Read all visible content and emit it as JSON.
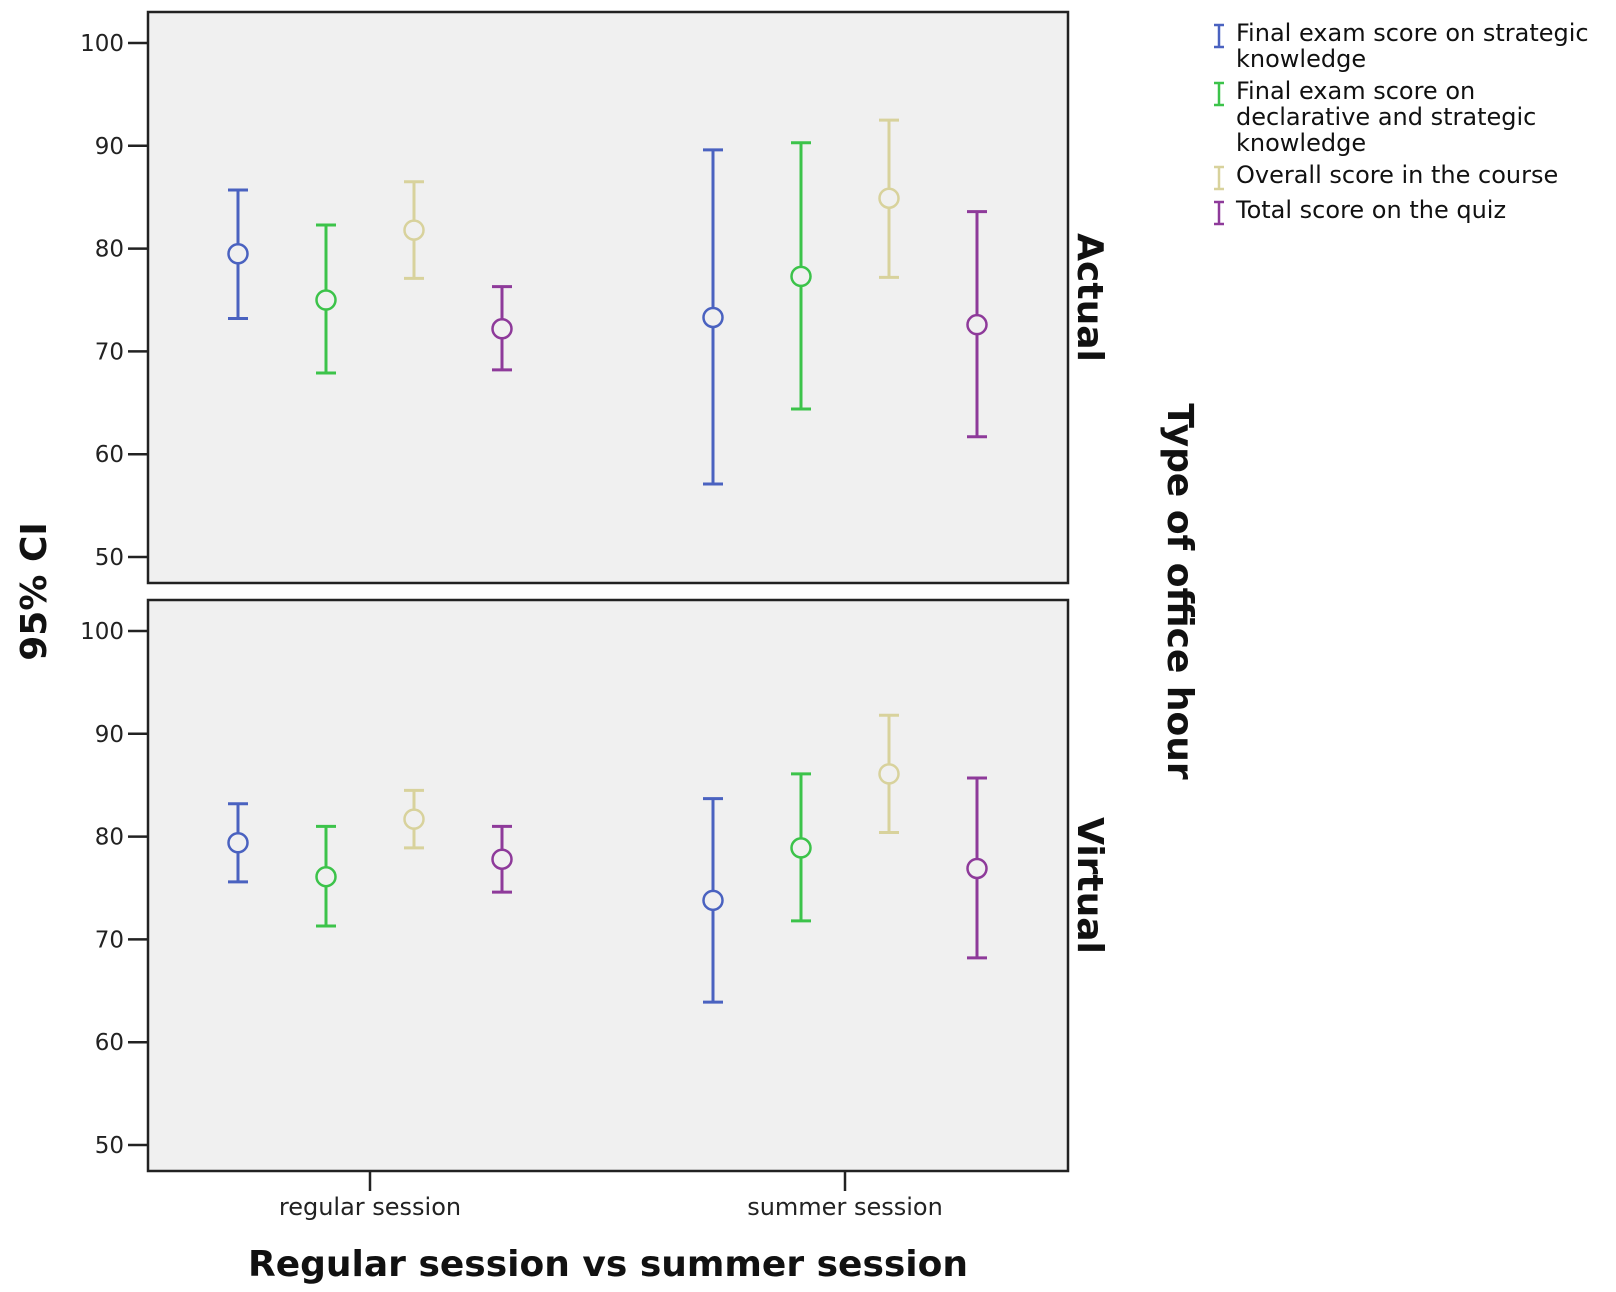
{
  "chart_data": {
    "type": "error-bar",
    "ylabel": "95% CI",
    "xlabel": "Regular session vs summer session",
    "facet_label": "Type of office hour",
    "categories": [
      "regular session",
      "summer session"
    ],
    "yticks": [
      50,
      60,
      70,
      80,
      90,
      100
    ],
    "ylim": [
      47,
      103
    ],
    "grid": false,
    "legend_position": "top-right",
    "series_meta": [
      {
        "name": "Final exam score on strategic knowledge",
        "color": "#4a62c0"
      },
      {
        "name": "Final exam score on declarative and strategic knowledge",
        "color": "#3cc34a"
      },
      {
        "name": "Overall score in the course",
        "color": "#d8d29c"
      },
      {
        "name": "Total score on the quiz",
        "color": "#8e3a9a"
      }
    ],
    "panels": [
      {
        "label": "Actual",
        "series": [
          {
            "name": "Final exam score on strategic knowledge",
            "mean": [
              79.5,
              73.3
            ],
            "low": [
              73.2,
              57.1
            ],
            "high": [
              85.7,
              89.6
            ]
          },
          {
            "name": "Final exam score on declarative and strategic knowledge",
            "mean": [
              75.0,
              77.3
            ],
            "low": [
              67.9,
              64.4
            ],
            "high": [
              82.3,
              90.3
            ]
          },
          {
            "name": "Overall score in the course",
            "mean": [
              81.8,
              84.9
            ],
            "low": [
              77.1,
              77.2
            ],
            "high": [
              86.5,
              92.5
            ]
          },
          {
            "name": "Total score on the quiz",
            "mean": [
              72.2,
              72.6
            ],
            "low": [
              68.2,
              61.7
            ],
            "high": [
              76.3,
              83.6
            ]
          }
        ]
      },
      {
        "label": "Virtual",
        "series": [
          {
            "name": "Final exam score on strategic knowledge",
            "mean": [
              79.4,
              73.8
            ],
            "low": [
              75.6,
              63.9
            ],
            "high": [
              83.2,
              83.7
            ]
          },
          {
            "name": "Final exam score on declarative and strategic knowledge",
            "mean": [
              76.1,
              78.9
            ],
            "low": [
              71.3,
              71.8
            ],
            "high": [
              81.0,
              86.1
            ]
          },
          {
            "name": "Overall score in the course",
            "mean": [
              81.7,
              86.1
            ],
            "low": [
              78.9,
              80.4
            ],
            "high": [
              84.5,
              91.8
            ]
          },
          {
            "name": "Total score on the quiz",
            "mean": [
              77.8,
              76.9
            ],
            "low": [
              74.6,
              68.2
            ],
            "high": [
              81.0,
              85.7
            ]
          }
        ]
      }
    ]
  }
}
